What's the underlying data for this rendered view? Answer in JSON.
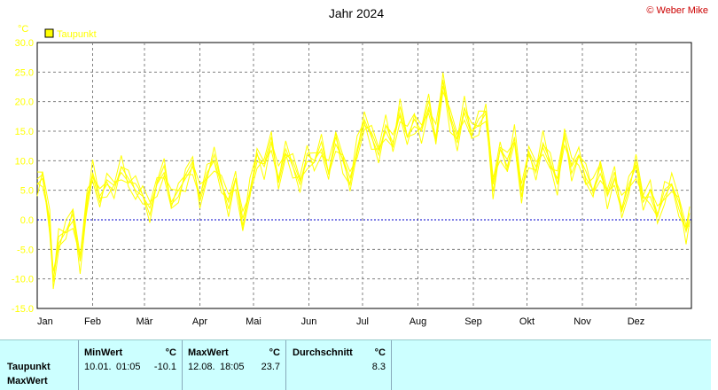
{
  "chart_data": {
    "type": "line",
    "title": "Jahr 2024",
    "brand": "© Weber Mike",
    "ylabel": "°C",
    "ylim": [
      -15,
      30
    ],
    "yticks": [
      "30.0",
      "25.0",
      "20.0",
      "15.0",
      "10.0",
      "5.0",
      "0.0",
      "-5.0",
      "-10.0",
      "-15.0"
    ],
    "xticks": [
      "Jan",
      "Feb",
      "Mär",
      "Apr",
      "Mai",
      "Jun",
      "Jul",
      "Aug",
      "Sep",
      "Okt",
      "Nov",
      "Dez"
    ],
    "legend": {
      "label": "Taupunkt",
      "position": "top-left"
    },
    "grid": true,
    "series": [
      {
        "name": "Taupunkt",
        "color": "#ffff00",
        "x_day_of_year": [
          1,
          4,
          8,
          10,
          13,
          17,
          21,
          25,
          29,
          32,
          36,
          40,
          44,
          48,
          52,
          56,
          60,
          64,
          68,
          72,
          76,
          80,
          84,
          88,
          92,
          96,
          100,
          104,
          108,
          112,
          116,
          120,
          124,
          128,
          132,
          136,
          140,
          144,
          148,
          152,
          156,
          160,
          164,
          168,
          172,
          176,
          180,
          184,
          188,
          192,
          196,
          200,
          204,
          208,
          212,
          216,
          220,
          224,
          228,
          232,
          236,
          240,
          244,
          248,
          252,
          256,
          260,
          264,
          268,
          272,
          276,
          280,
          284,
          288,
          292,
          296,
          300,
          304,
          308,
          312,
          316,
          320,
          324,
          328,
          332,
          336,
          340,
          344,
          348,
          352,
          356,
          360,
          364,
          366
        ],
        "values": [
          6,
          7,
          0,
          -10.1,
          -4,
          -2,
          1,
          -7,
          3,
          8,
          4,
          6,
          5,
          9,
          7,
          5,
          4,
          2,
          6,
          8,
          3,
          5,
          7,
          9,
          4,
          8,
          10,
          6,
          3,
          7,
          -1,
          5,
          11,
          9,
          13,
          7,
          12,
          9,
          6,
          11,
          10,
          12,
          8,
          14,
          10,
          6,
          12,
          17,
          14,
          11,
          16,
          13,
          18,
          14,
          17,
          15,
          19,
          14,
          23.7,
          17,
          13,
          19,
          15,
          16,
          18,
          6,
          12,
          9,
          14,
          5,
          11,
          8,
          13,
          10,
          6,
          14,
          9,
          11,
          7,
          5,
          9,
          4,
          7,
          2,
          6,
          9,
          3,
          5,
          1,
          4,
          6,
          3,
          -2,
          0
        ]
      }
    ]
  },
  "stats": {
    "columns": [
      {
        "header": "MinWert",
        "unit": "°C",
        "date": "10.01.",
        "time": "01:05",
        "value": "-10.1"
      },
      {
        "header": "MaxWert",
        "unit": "°C",
        "date": "12.08.",
        "time": "18:05",
        "value": "23.7"
      },
      {
        "header": "Durchschnitt",
        "unit": "°C",
        "value": "8.3"
      }
    ],
    "row_labels": [
      "Taupunkt",
      "MaxWert"
    ]
  },
  "colors": {
    "plot_bg": "#ffffff",
    "series": "#ffff00",
    "zero_line": "#0000cc",
    "grid": "#808080",
    "panel_bg": "#ccffff"
  }
}
